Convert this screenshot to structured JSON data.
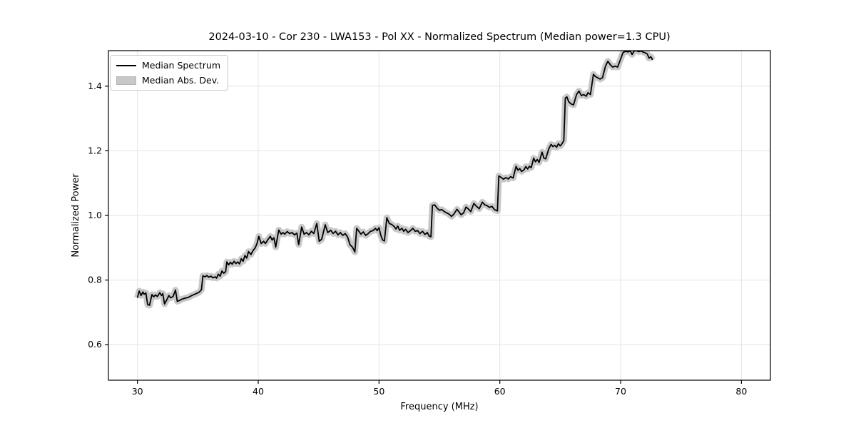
{
  "chart_data": {
    "type": "line",
    "title": "2024-03-10 - Cor 230 - LWA153 - Pol XX - Normalized Spectrum (Median power=1.3 CPU)",
    "xlabel": "Frequency (MHz)",
    "ylabel": "Normalized Power",
    "xlim": [
      27.6,
      82.4
    ],
    "ylim": [
      0.49,
      1.51
    ],
    "xticks": [
      30,
      40,
      50,
      60,
      70,
      80
    ],
    "yticks": [
      0.6,
      0.8,
      1.0,
      1.2,
      1.4
    ],
    "grid": true,
    "legend_position": "upper left",
    "colors": {
      "line": "#000000",
      "band": "#c8c8c8",
      "grid": "#e4e4e4",
      "spine": "#000000",
      "background": "#ffffff"
    },
    "band_half_width": 0.008,
    "series": [
      {
        "name": "Median Spectrum",
        "style": "line",
        "color": "#000000",
        "points": [
          [
            30.0,
            0.745
          ],
          [
            30.15,
            0.766
          ],
          [
            30.3,
            0.752
          ],
          [
            30.45,
            0.763
          ],
          [
            30.55,
            0.756
          ],
          [
            30.7,
            0.76
          ],
          [
            30.85,
            0.724
          ],
          [
            31.0,
            0.722
          ],
          [
            31.2,
            0.755
          ],
          [
            31.35,
            0.748
          ],
          [
            31.5,
            0.754
          ],
          [
            31.65,
            0.749
          ],
          [
            31.85,
            0.761
          ],
          [
            32.0,
            0.752
          ],
          [
            32.1,
            0.758
          ],
          [
            32.25,
            0.726
          ],
          [
            32.45,
            0.74
          ],
          [
            32.6,
            0.752
          ],
          [
            32.75,
            0.745
          ],
          [
            32.95,
            0.749
          ],
          [
            33.15,
            0.769
          ],
          [
            33.3,
            0.734
          ],
          [
            33.5,
            0.737
          ],
          [
            33.7,
            0.741
          ],
          [
            33.95,
            0.744
          ],
          [
            34.2,
            0.746
          ],
          [
            34.5,
            0.752
          ],
          [
            34.8,
            0.757
          ],
          [
            35.1,
            0.762
          ],
          [
            35.3,
            0.77
          ],
          [
            35.42,
            0.813
          ],
          [
            35.6,
            0.81
          ],
          [
            35.75,
            0.814
          ],
          [
            35.9,
            0.809
          ],
          [
            36.1,
            0.812
          ],
          [
            36.25,
            0.807
          ],
          [
            36.45,
            0.81
          ],
          [
            36.55,
            0.806
          ],
          [
            36.7,
            0.818
          ],
          [
            36.85,
            0.812
          ],
          [
            37.0,
            0.828
          ],
          [
            37.15,
            0.821
          ],
          [
            37.3,
            0.826
          ],
          [
            37.4,
            0.856
          ],
          [
            37.55,
            0.847
          ],
          [
            37.7,
            0.855
          ],
          [
            37.85,
            0.849
          ],
          [
            38.0,
            0.858
          ],
          [
            38.15,
            0.851
          ],
          [
            38.3,
            0.856
          ],
          [
            38.45,
            0.85
          ],
          [
            38.6,
            0.866
          ],
          [
            38.75,
            0.858
          ],
          [
            38.9,
            0.876
          ],
          [
            39.05,
            0.868
          ],
          [
            39.2,
            0.888
          ],
          [
            39.4,
            0.879
          ],
          [
            39.55,
            0.89
          ],
          [
            39.75,
            0.9
          ],
          [
            39.9,
            0.913
          ],
          [
            40.05,
            0.935
          ],
          [
            40.25,
            0.913
          ],
          [
            40.45,
            0.92
          ],
          [
            40.6,
            0.913
          ],
          [
            40.8,
            0.925
          ],
          [
            41.0,
            0.935
          ],
          [
            41.15,
            0.924
          ],
          [
            41.3,
            0.931
          ],
          [
            41.45,
            0.902
          ],
          [
            41.7,
            0.955
          ],
          [
            41.9,
            0.942
          ],
          [
            42.05,
            0.947
          ],
          [
            42.2,
            0.942
          ],
          [
            42.4,
            0.95
          ],
          [
            42.6,
            0.944
          ],
          [
            42.8,
            0.947
          ],
          [
            43.0,
            0.94
          ],
          [
            43.2,
            0.945
          ],
          [
            43.35,
            0.91
          ],
          [
            43.6,
            0.964
          ],
          [
            43.8,
            0.942
          ],
          [
            44.0,
            0.947
          ],
          [
            44.2,
            0.94
          ],
          [
            44.4,
            0.951
          ],
          [
            44.6,
            0.944
          ],
          [
            44.85,
            0.975
          ],
          [
            45.05,
            0.92
          ],
          [
            45.25,
            0.926
          ],
          [
            45.55,
            0.971
          ],
          [
            45.75,
            0.947
          ],
          [
            46.0,
            0.954
          ],
          [
            46.2,
            0.944
          ],
          [
            46.4,
            0.951
          ],
          [
            46.6,
            0.94
          ],
          [
            46.8,
            0.947
          ],
          [
            47.0,
            0.938
          ],
          [
            47.2,
            0.944
          ],
          [
            47.4,
            0.933
          ],
          [
            47.6,
            0.909
          ],
          [
            47.8,
            0.902
          ],
          [
            48.0,
            0.887
          ],
          [
            48.15,
            0.96
          ],
          [
            48.3,
            0.953
          ],
          [
            48.5,
            0.942
          ],
          [
            48.7,
            0.949
          ],
          [
            48.9,
            0.938
          ],
          [
            49.1,
            0.944
          ],
          [
            49.3,
            0.951
          ],
          [
            49.5,
            0.953
          ],
          [
            49.7,
            0.96
          ],
          [
            49.85,
            0.953
          ],
          [
            50.0,
            0.962
          ],
          [
            50.15,
            0.938
          ],
          [
            50.3,
            0.924
          ],
          [
            50.45,
            0.921
          ],
          [
            50.65,
            0.993
          ],
          [
            50.85,
            0.975
          ],
          [
            51.05,
            0.972
          ],
          [
            51.25,
            0.966
          ],
          [
            51.4,
            0.958
          ],
          [
            51.55,
            0.967
          ],
          [
            51.7,
            0.954
          ],
          [
            51.9,
            0.96
          ],
          [
            52.05,
            0.951
          ],
          [
            52.2,
            0.957
          ],
          [
            52.4,
            0.947
          ],
          [
            52.6,
            0.953
          ],
          [
            52.8,
            0.96
          ],
          [
            53.0,
            0.951
          ],
          [
            53.2,
            0.953
          ],
          [
            53.4,
            0.944
          ],
          [
            53.6,
            0.951
          ],
          [
            53.8,
            0.941
          ],
          [
            54.0,
            0.947
          ],
          [
            54.15,
            0.936
          ],
          [
            54.3,
            0.934
          ],
          [
            54.42,
            1.031
          ],
          [
            54.6,
            1.033
          ],
          [
            54.8,
            1.023
          ],
          [
            55.0,
            1.016
          ],
          [
            55.2,
            1.018
          ],
          [
            55.4,
            1.012
          ],
          [
            55.6,
            1.008
          ],
          [
            55.8,
            1.004
          ],
          [
            56.0,
            0.997
          ],
          [
            56.2,
            1.004
          ],
          [
            56.45,
            1.019
          ],
          [
            56.6,
            1.012
          ],
          [
            56.8,
            1.002
          ],
          [
            57.0,
            1.008
          ],
          [
            57.2,
            1.026
          ],
          [
            57.4,
            1.02
          ],
          [
            57.6,
            1.012
          ],
          [
            57.85,
            1.037
          ],
          [
            58.05,
            1.029
          ],
          [
            58.3,
            1.021
          ],
          [
            58.55,
            1.041
          ],
          [
            58.75,
            1.033
          ],
          [
            58.95,
            1.03
          ],
          [
            59.15,
            1.025
          ],
          [
            59.35,
            1.028
          ],
          [
            59.55,
            1.018
          ],
          [
            59.8,
            1.014
          ],
          [
            59.92,
            1.122
          ],
          [
            60.1,
            1.118
          ],
          [
            60.3,
            1.112
          ],
          [
            60.5,
            1.117
          ],
          [
            60.7,
            1.113
          ],
          [
            60.9,
            1.12
          ],
          [
            61.1,
            1.116
          ],
          [
            61.35,
            1.152
          ],
          [
            61.5,
            1.14
          ],
          [
            61.65,
            1.145
          ],
          [
            61.8,
            1.136
          ],
          [
            62.0,
            1.141
          ],
          [
            62.15,
            1.151
          ],
          [
            62.3,
            1.144
          ],
          [
            62.45,
            1.152
          ],
          [
            62.6,
            1.148
          ],
          [
            62.8,
            1.177
          ],
          [
            62.95,
            1.166
          ],
          [
            63.1,
            1.173
          ],
          [
            63.25,
            1.164
          ],
          [
            63.5,
            1.196
          ],
          [
            63.65,
            1.177
          ],
          [
            63.8,
            1.175
          ],
          [
            64.05,
            1.206
          ],
          [
            64.25,
            1.22
          ],
          [
            64.4,
            1.213
          ],
          [
            64.55,
            1.217
          ],
          [
            64.7,
            1.211
          ],
          [
            64.85,
            1.222
          ],
          [
            65.0,
            1.215
          ],
          [
            65.15,
            1.222
          ],
          [
            65.3,
            1.232
          ],
          [
            65.42,
            1.363
          ],
          [
            65.55,
            1.367
          ],
          [
            65.7,
            1.352
          ],
          [
            65.9,
            1.345
          ],
          [
            66.1,
            1.342
          ],
          [
            66.35,
            1.374
          ],
          [
            66.55,
            1.385
          ],
          [
            66.75,
            1.371
          ],
          [
            66.95,
            1.374
          ],
          [
            67.15,
            1.369
          ],
          [
            67.3,
            1.38
          ],
          [
            67.5,
            1.374
          ],
          [
            67.75,
            1.437
          ],
          [
            67.9,
            1.43
          ],
          [
            68.1,
            1.426
          ],
          [
            68.3,
            1.422
          ],
          [
            68.5,
            1.426
          ],
          [
            68.75,
            1.462
          ],
          [
            68.95,
            1.477
          ],
          [
            69.15,
            1.466
          ],
          [
            69.35,
            1.459
          ],
          [
            69.55,
            1.462
          ],
          [
            69.75,
            1.459
          ],
          [
            70.0,
            1.484
          ],
          [
            70.2,
            1.504
          ],
          [
            70.4,
            1.508
          ],
          [
            70.6,
            1.506
          ],
          [
            70.8,
            1.509
          ],
          [
            70.95,
            1.498
          ],
          [
            71.1,
            1.508
          ],
          [
            71.3,
            1.51
          ],
          [
            71.5,
            1.507
          ],
          [
            71.7,
            1.509
          ],
          [
            71.9,
            1.505
          ],
          [
            72.05,
            1.503
          ],
          [
            72.2,
            1.5
          ],
          [
            72.35,
            1.487
          ],
          [
            72.5,
            1.491
          ],
          [
            72.65,
            1.481
          ]
        ]
      },
      {
        "name": "Median Abs. Dev.",
        "style": "band",
        "color": "#c8c8c8"
      }
    ]
  }
}
